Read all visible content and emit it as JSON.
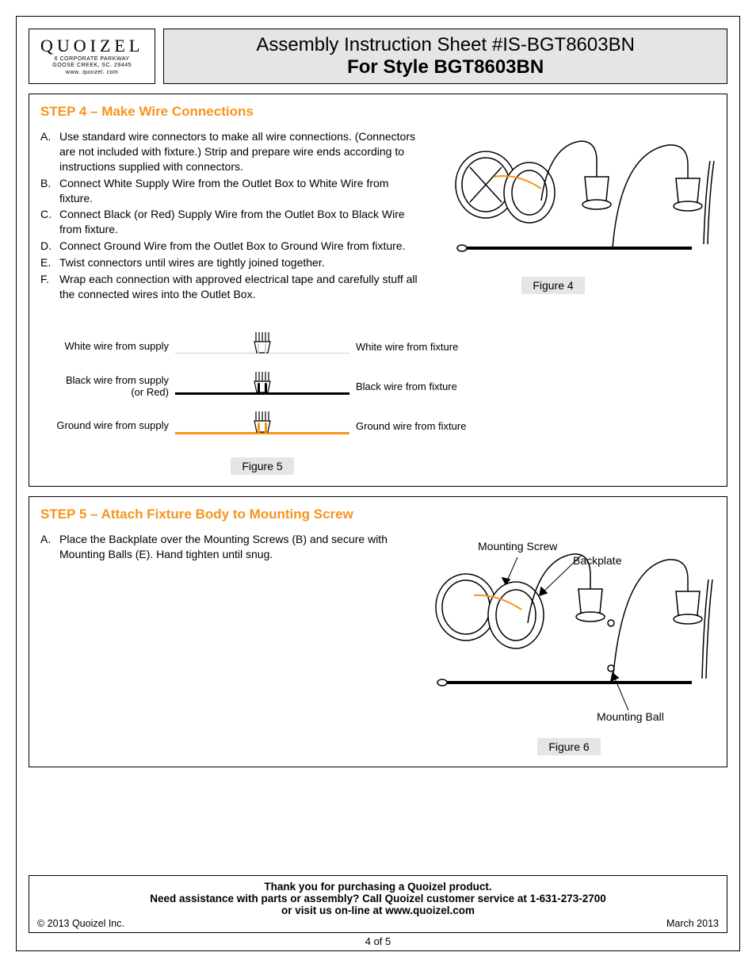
{
  "logo": {
    "name": "QUOIZEL",
    "addr1": "6 CORPORATE PARKWAY",
    "addr2": "GOOSE CREEK, SC. 29445",
    "addr3": "www. quoizel. com"
  },
  "title": {
    "line1": "Assembly Instruction Sheet #IS-BGT8603BN",
    "line2": "For Style BGT8603BN"
  },
  "step4": {
    "heading_prefix": "STEP 4",
    "heading_rest": "Make Wire Connections",
    "items": [
      {
        "letter": "A.",
        "text": "Use standard wire connectors to make all wire connections. (Connectors are not included with fixture.) Strip and prepare wire ends according to instructions supplied with connectors."
      },
      {
        "letter": "B.",
        "text": "Connect White Supply Wire from the Outlet Box to White Wire from fixture."
      },
      {
        "letter": "C.",
        "text": "Connect Black (or Red) Supply Wire from the Outlet Box to Black Wire from fixture."
      },
      {
        "letter": "D.",
        "text": "Connect Ground Wire from the Outlet Box to Ground Wire from fixture."
      },
      {
        "letter": "E.",
        "text": "Twist connectors until wires are tightly joined together."
      },
      {
        "letter": "F.",
        "text": "Wrap each connection with approved electrical tape and carefully stuff all the connected wires into the Outlet Box."
      }
    ],
    "figure4_label": "Figure 4",
    "figure5_label": "Figure 5",
    "wires": [
      {
        "left": "White wire from supply",
        "left2": "",
        "right": "White wire from fixture",
        "color": "#d0d0d0",
        "thin": true
      },
      {
        "left": "Black wire from supply",
        "left2": "(or Red)",
        "right": "Black wire from fixture",
        "color": "#000000",
        "thin": false
      },
      {
        "left": "Ground wire from supply",
        "left2": "",
        "right": "Ground wire from fixture",
        "color": "#f7941d",
        "thin": false
      }
    ]
  },
  "step5": {
    "heading_prefix": "STEP 5",
    "heading_rest": "Attach Fixture Body to Mounting Screw",
    "items": [
      {
        "letter": "A.",
        "text": "Place the Backplate over the Mounting Screws (B) and secure with Mounting Balls (E). Hand tighten until snug."
      }
    ],
    "figure6_label": "Figure 6",
    "callouts": {
      "mounting_screw": "Mounting Screw",
      "backplate": "Backplate",
      "mounting_ball": "Mounting Ball"
    }
  },
  "footer": {
    "line1": "Thank you for purchasing a Quoizel product.",
    "line2": "Need assistance with parts or assembly? Call Quoizel customer service at 1-631-273-2700",
    "line3": "or visit us on-line at www.quoizel.com",
    "copyright": "© 2013  Quoizel Inc.",
    "date": "March  2013"
  },
  "page_num": "4 of 5",
  "colors": {
    "accent": "#f7941d",
    "grey_bg": "#e5e5e5"
  }
}
